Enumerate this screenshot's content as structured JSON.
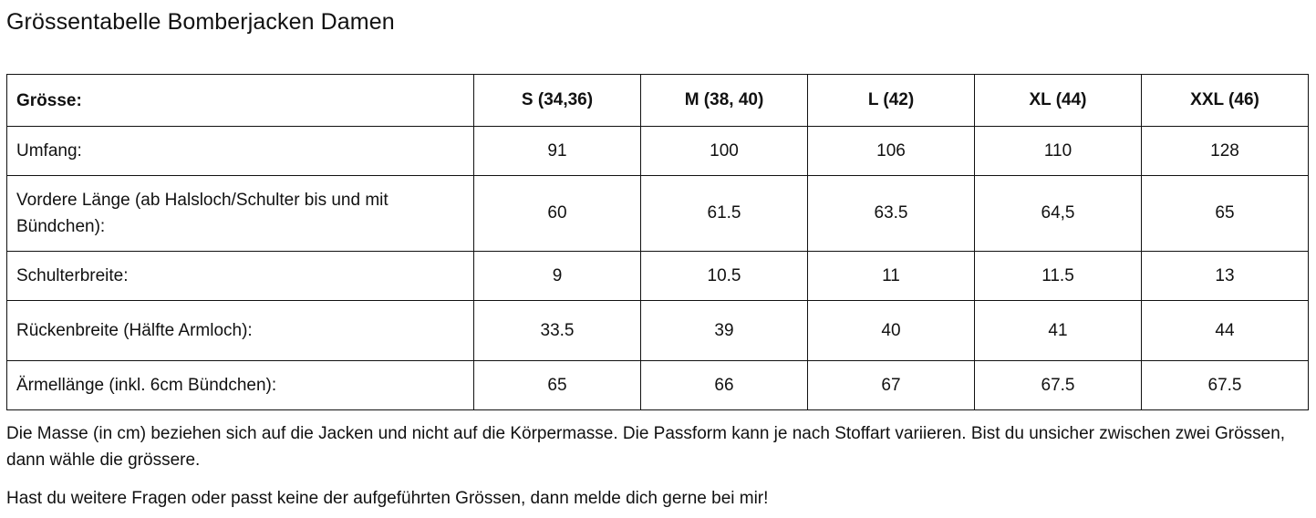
{
  "title": "Grössentabelle Bomberjacken Damen",
  "table": {
    "header": {
      "label": "Grösse:",
      "sizes": [
        "S (34,36)",
        "M (38, 40)",
        "L (42)",
        "XL (44)",
        "XXL (46)"
      ]
    },
    "rows": [
      {
        "label": "Umfang:",
        "values": [
          "91",
          "100",
          "106",
          "110",
          "128"
        ]
      },
      {
        "label": "Vordere Länge (ab Halsloch/Schulter bis und mit Bündchen):",
        "values": [
          "60",
          "61.5",
          "63.5",
          "64,5",
          "65"
        ]
      },
      {
        "label": "Schulterbreite:",
        "values": [
          "9",
          "10.5",
          "11",
          "11.5",
          "13"
        ]
      },
      {
        "label": "Rückenbreite (Hälfte Armloch):",
        "values": [
          "33.5",
          "39",
          "40",
          "41",
          "44"
        ]
      },
      {
        "label": "Ärmellänge (inkl. 6cm Bündchen):",
        "values": [
          "65",
          "66",
          "67",
          "67.5",
          "67.5"
        ]
      }
    ]
  },
  "notes": [
    "Die Masse (in cm) beziehen sich auf die Jacken und nicht auf die Körpermasse. Die Passform kann je nach Stoffart variieren. Bist du unsicher zwischen zwei Grössen, dann wähle die grössere.",
    "Hast du weitere Fragen oder passt keine der aufgeführten Grössen, dann melde dich gerne bei mir!"
  ]
}
